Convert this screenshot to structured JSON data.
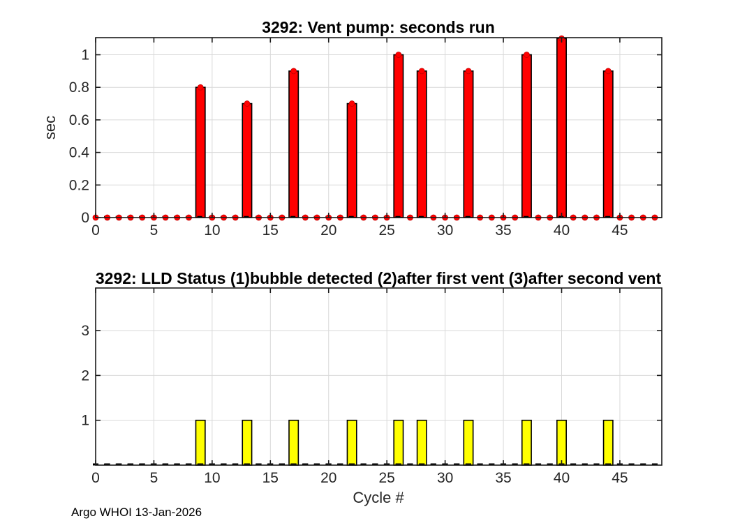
{
  "figure": {
    "background": "#ffffff",
    "credit": "Argo WHOI 13-Jan-2026"
  },
  "style": {
    "frame_color": "#1a1a1a",
    "grid_color": "#d9d9d9",
    "tick_text_color": "#262626",
    "zero_line_color": "#000000",
    "bar_edge_color": "#000000",
    "marker_edge_color": "#c40000"
  },
  "chart_data": [
    {
      "type": "bar",
      "title": "3292: Vent pump: seconds run",
      "ylabel": "sec",
      "xlabel": "",
      "bar_color": "#ff0000",
      "marker": "dot",
      "marker_color": "#ff0000",
      "x_start": 0,
      "categories": [
        0,
        1,
        2,
        3,
        4,
        5,
        6,
        7,
        8,
        9,
        10,
        11,
        12,
        13,
        14,
        15,
        16,
        17,
        18,
        19,
        20,
        21,
        22,
        23,
        24,
        25,
        26,
        27,
        28,
        29,
        30,
        31,
        32,
        33,
        34,
        35,
        36,
        37,
        38,
        39,
        40,
        41,
        42,
        43,
        44,
        45,
        46,
        47,
        48
      ],
      "values": [
        0,
        0,
        0,
        0,
        0,
        0,
        0,
        0,
        0,
        0.8,
        0,
        0,
        0,
        0.7,
        0,
        0,
        0,
        0.9,
        0,
        0,
        0,
        0,
        0.7,
        0,
        0,
        0,
        1,
        0,
        0.9,
        0,
        0,
        0,
        0.9,
        0,
        0,
        0,
        0,
        1,
        0,
        0,
        1.1,
        0,
        0,
        0,
        0.9,
        0,
        0,
        0,
        0
      ],
      "xlim": [
        0,
        48.6
      ],
      "ylim": [
        0,
        1.105
      ],
      "xticks": [
        0,
        5,
        10,
        15,
        20,
        25,
        30,
        35,
        40,
        45
      ],
      "xtick_labels": [
        "0",
        "5",
        "10",
        "15",
        "20",
        "25",
        "30",
        "35",
        "40",
        "45"
      ],
      "yticks": [
        0,
        0.2,
        0.4,
        0.6,
        0.8,
        1
      ],
      "ytick_labels": [
        "0",
        "0.2",
        "0.4",
        "0.6",
        "0.8",
        "1"
      ],
      "grid": true,
      "bar_width": 0.8
    },
    {
      "type": "bar",
      "title": "3292: LLD Status   (1)bubble detected   (2)after first vent  (3)after second vent",
      "ylabel": "",
      "xlabel": "Cycle #",
      "bar_color": "#ffff00",
      "marker": "dash",
      "marker_color": "#000000",
      "x_start": 0,
      "categories": [
        0,
        1,
        2,
        3,
        4,
        5,
        6,
        7,
        8,
        9,
        10,
        11,
        12,
        13,
        14,
        15,
        16,
        17,
        18,
        19,
        20,
        21,
        22,
        23,
        24,
        25,
        26,
        27,
        28,
        29,
        30,
        31,
        32,
        33,
        34,
        35,
        36,
        37,
        38,
        39,
        40,
        41,
        42,
        43,
        44,
        45,
        46,
        47,
        48
      ],
      "values": [
        0,
        0,
        0,
        0,
        0,
        0,
        0,
        0,
        0,
        1,
        0,
        0,
        0,
        1,
        0,
        0,
        0,
        1,
        0,
        0,
        0,
        0,
        1,
        0,
        0,
        0,
        1,
        0,
        1,
        0,
        0,
        0,
        1,
        0,
        0,
        0,
        0,
        1,
        0,
        0,
        1,
        0,
        0,
        0,
        1,
        0,
        0,
        0,
        0
      ],
      "xlim": [
        0,
        48.6
      ],
      "ylim": [
        0,
        3.95
      ],
      "xticks": [
        0,
        5,
        10,
        15,
        20,
        25,
        30,
        35,
        40,
        45
      ],
      "xtick_labels": [
        "0",
        "5",
        "10",
        "15",
        "20",
        "25",
        "30",
        "35",
        "40",
        "45"
      ],
      "yticks": [
        1,
        2,
        3
      ],
      "ytick_labels": [
        "1",
        "2",
        "3"
      ],
      "grid": true,
      "bar_width": 0.8
    }
  ]
}
